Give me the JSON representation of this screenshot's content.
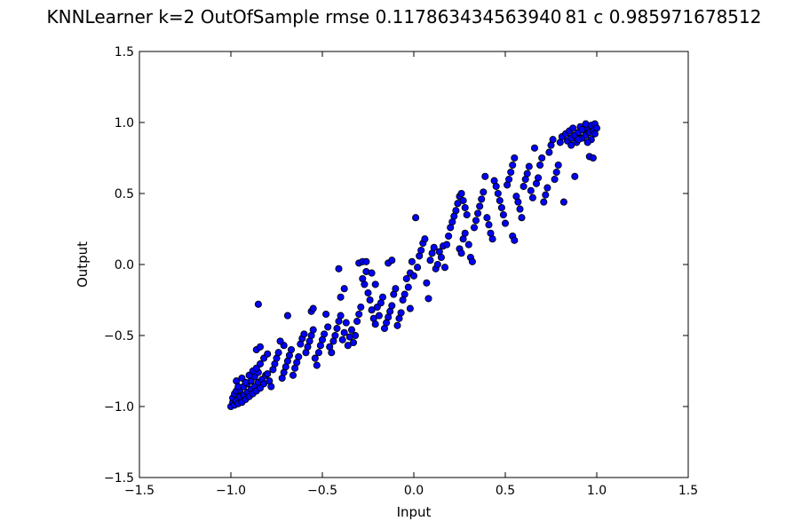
{
  "chart_data": {
    "type": "scatter",
    "title": "KNNLearner k=2 OutOfSample rmse 0.117863434563940 81 c 0.985971678512",
    "xlabel": "Input",
    "ylabel": "Output",
    "xlim": [
      -1.5,
      1.5
    ],
    "ylim": [
      -1.5,
      1.5
    ],
    "xticks": [
      -1.5,
      -1.0,
      -0.5,
      0.0,
      0.5,
      1.0,
      1.5
    ],
    "yticks": [
      -1.5,
      -1.0,
      -0.5,
      0.0,
      0.5,
      1.0,
      1.5
    ],
    "xtick_labels": [
      "−1.5",
      "−1.0",
      "−0.5",
      "0.0",
      "0.5",
      "1.0",
      "1.5"
    ],
    "ytick_labels": [
      "−1.5",
      "−1.0",
      "−0.5",
      "0.0",
      "0.5",
      "1.0",
      "1.5"
    ],
    "grid": false,
    "point_color": "#0000ff",
    "points": [
      [
        -1.0,
        -1.0
      ],
      [
        -0.99,
        -0.97
      ],
      [
        -0.98,
        -0.99
      ],
      [
        -0.99,
        -0.94
      ],
      [
        -0.97,
        -0.96
      ],
      [
        -0.98,
        -0.91
      ],
      [
        -0.96,
        -0.98
      ],
      [
        -0.95,
        -0.93
      ],
      [
        -0.97,
        -0.89
      ],
      [
        -0.94,
        -0.97
      ],
      [
        -0.93,
        -0.92
      ],
      [
        -0.95,
        -0.88
      ],
      [
        -0.92,
        -0.95
      ],
      [
        -0.91,
        -0.9
      ],
      [
        -0.93,
        -0.86
      ],
      [
        -0.9,
        -0.93
      ],
      [
        -0.89,
        -0.88
      ],
      [
        -0.91,
        -0.84
      ],
      [
        -0.88,
        -0.91
      ],
      [
        -0.87,
        -0.86
      ],
      [
        -0.89,
        -0.82
      ],
      [
        -0.86,
        -0.89
      ],
      [
        -0.85,
        -0.83
      ],
      [
        -0.87,
        -0.79
      ],
      [
        -0.84,
        -0.87
      ],
      [
        -0.83,
        -0.81
      ],
      [
        -0.85,
        -0.76
      ],
      [
        -0.82,
        -0.84
      ],
      [
        -0.81,
        -0.78
      ],
      [
        -0.97,
        -0.82
      ],
      [
        -0.96,
        -0.86
      ],
      [
        -0.94,
        -0.8
      ],
      [
        -0.92,
        -0.83
      ],
      [
        -0.9,
        -0.78
      ],
      [
        -0.88,
        -0.75
      ],
      [
        -0.86,
        -0.73
      ],
      [
        -0.84,
        -0.7
      ],
      [
        -0.86,
        -0.6
      ],
      [
        -0.84,
        -0.58
      ],
      [
        -0.82,
        -0.66
      ],
      [
        -0.8,
        -0.63
      ],
      [
        -0.8,
        -0.77
      ],
      [
        -0.79,
        -0.82
      ],
      [
        -0.78,
        -0.86
      ],
      [
        -0.77,
        -0.74
      ],
      [
        -0.76,
        -0.7
      ],
      [
        -0.75,
        -0.66
      ],
      [
        -0.74,
        -0.62
      ],
      [
        -0.72,
        -0.8
      ],
      [
        -0.71,
        -0.76
      ],
      [
        -0.7,
        -0.72
      ],
      [
        -0.69,
        -0.68
      ],
      [
        -0.68,
        -0.64
      ],
      [
        -0.67,
        -0.6
      ],
      [
        -0.71,
        -0.57
      ],
      [
        -0.73,
        -0.54
      ],
      [
        -0.85,
        -0.28
      ],
      [
        -0.69,
        -0.36
      ],
      [
        -0.66,
        -0.78
      ],
      [
        -0.65,
        -0.73
      ],
      [
        -0.64,
        -0.69
      ],
      [
        -0.63,
        -0.65
      ],
      [
        -0.62,
        -0.56
      ],
      [
        -0.61,
        -0.52
      ],
      [
        -0.6,
        -0.49
      ],
      [
        -0.59,
        -0.62
      ],
      [
        -0.58,
        -0.58
      ],
      [
        -0.57,
        -0.54
      ],
      [
        -0.56,
        -0.5
      ],
      [
        -0.55,
        -0.46
      ],
      [
        -0.54,
        -0.66
      ],
      [
        -0.53,
        -0.71
      ],
      [
        -0.52,
        -0.62
      ],
      [
        -0.51,
        -0.57
      ],
      [
        -0.5,
        -0.53
      ],
      [
        -0.49,
        -0.49
      ],
      [
        -0.48,
        -0.35
      ],
      [
        -0.47,
        -0.44
      ],
      [
        -0.56,
        -0.33
      ],
      [
        -0.55,
        -0.31
      ],
      [
        -0.46,
        -0.58
      ],
      [
        -0.45,
        -0.62
      ],
      [
        -0.44,
        -0.54
      ],
      [
        -0.43,
        -0.5
      ],
      [
        -0.42,
        -0.45
      ],
      [
        -0.41,
        -0.4
      ],
      [
        -0.4,
        -0.36
      ],
      [
        -0.39,
        -0.53
      ],
      [
        -0.38,
        -0.48
      ],
      [
        -0.37,
        -0.41
      ],
      [
        -0.36,
        -0.57
      ],
      [
        -0.35,
        -0.51
      ],
      [
        -0.34,
        -0.46
      ],
      [
        -0.4,
        -0.23
      ],
      [
        -0.38,
        -0.17
      ],
      [
        -0.41,
        -0.03
      ],
      [
        -0.33,
        -0.55
      ],
      [
        -0.32,
        -0.5
      ],
      [
        -0.31,
        -0.4
      ],
      [
        -0.3,
        -0.35
      ],
      [
        -0.29,
        -0.3
      ],
      [
        -0.28,
        -0.1
      ],
      [
        -0.27,
        -0.14
      ],
      [
        -0.26,
        -0.05
      ],
      [
        -0.25,
        -0.2
      ],
      [
        -0.24,
        -0.25
      ],
      [
        -0.23,
        -0.32
      ],
      [
        -0.22,
        -0.38
      ],
      [
        -0.21,
        -0.42
      ],
      [
        -0.2,
        -0.3
      ],
      [
        -0.19,
        -0.36
      ],
      [
        -0.3,
        0.01
      ],
      [
        -0.28,
        0.02
      ],
      [
        -0.26,
        0.02
      ],
      [
        -0.23,
        -0.06
      ],
      [
        -0.21,
        -0.14
      ],
      [
        -0.18,
        -0.27
      ],
      [
        -0.17,
        -0.23
      ],
      [
        -0.16,
        -0.45
      ],
      [
        -0.15,
        -0.41
      ],
      [
        -0.14,
        -0.37
      ],
      [
        -0.13,
        -0.33
      ],
      [
        -0.12,
        -0.29
      ],
      [
        -0.14,
        0.01
      ],
      [
        -0.12,
        0.03
      ],
      [
        -0.11,
        -0.21
      ],
      [
        -0.1,
        -0.17
      ],
      [
        -0.09,
        -0.43
      ],
      [
        -0.08,
        -0.38
      ],
      [
        -0.07,
        -0.34
      ],
      [
        -0.06,
        -0.25
      ],
      [
        -0.05,
        -0.21
      ],
      [
        -0.04,
        -0.1
      ],
      [
        -0.03,
        -0.16
      ],
      [
        -0.02,
        -0.06
      ],
      [
        -0.01,
        0.02
      ],
      [
        0.01,
        0.33
      ],
      [
        -0.02,
        -0.31
      ],
      [
        0.0,
        -0.08
      ],
      [
        0.02,
        -0.02
      ],
      [
        0.03,
        0.06
      ],
      [
        0.04,
        0.1
      ],
      [
        0.05,
        0.15
      ],
      [
        0.06,
        0.18
      ],
      [
        0.07,
        -0.13
      ],
      [
        0.08,
        -0.24
      ],
      [
        0.09,
        0.03
      ],
      [
        0.1,
        0.08
      ],
      [
        0.11,
        0.12
      ],
      [
        0.12,
        -0.03
      ],
      [
        0.13,
        0.0
      ],
      [
        0.14,
        0.09
      ],
      [
        0.15,
        0.05
      ],
      [
        0.16,
        0.13
      ],
      [
        0.17,
        -0.02
      ],
      [
        0.18,
        0.14
      ],
      [
        0.19,
        0.2
      ],
      [
        0.2,
        0.26
      ],
      [
        0.21,
        0.3
      ],
      [
        0.22,
        0.34
      ],
      [
        0.23,
        0.38
      ],
      [
        0.24,
        0.43
      ],
      [
        0.25,
        0.48
      ],
      [
        0.26,
        0.5
      ],
      [
        0.27,
        0.45
      ],
      [
        0.28,
        0.4
      ],
      [
        0.29,
        0.35
      ],
      [
        0.25,
        0.11
      ],
      [
        0.26,
        0.08
      ],
      [
        0.27,
        0.18
      ],
      [
        0.28,
        0.22
      ],
      [
        0.3,
        0.14
      ],
      [
        0.31,
        0.05
      ],
      [
        0.32,
        0.02
      ],
      [
        0.33,
        0.26
      ],
      [
        0.34,
        0.31
      ],
      [
        0.35,
        0.36
      ],
      [
        0.36,
        0.41
      ],
      [
        0.37,
        0.46
      ],
      [
        0.38,
        0.51
      ],
      [
        0.39,
        0.62
      ],
      [
        0.4,
        0.33
      ],
      [
        0.41,
        0.28
      ],
      [
        0.42,
        0.22
      ],
      [
        0.43,
        0.18
      ],
      [
        0.44,
        0.59
      ],
      [
        0.45,
        0.55
      ],
      [
        0.46,
        0.5
      ],
      [
        0.47,
        0.45
      ],
      [
        0.48,
        0.4
      ],
      [
        0.49,
        0.35
      ],
      [
        0.5,
        0.29
      ],
      [
        0.51,
        0.56
      ],
      [
        0.52,
        0.6
      ],
      [
        0.53,
        0.65
      ],
      [
        0.54,
        0.7
      ],
      [
        0.55,
        0.75
      ],
      [
        0.56,
        0.48
      ],
      [
        0.57,
        0.44
      ],
      [
        0.58,
        0.39
      ],
      [
        0.54,
        0.2
      ],
      [
        0.55,
        0.17
      ],
      [
        0.59,
        0.33
      ],
      [
        0.6,
        0.55
      ],
      [
        0.61,
        0.6
      ],
      [
        0.62,
        0.64
      ],
      [
        0.63,
        0.69
      ],
      [
        0.64,
        0.52
      ],
      [
        0.65,
        0.47
      ],
      [
        0.66,
        0.82
      ],
      [
        0.67,
        0.57
      ],
      [
        0.68,
        0.61
      ],
      [
        0.69,
        0.7
      ],
      [
        0.7,
        0.75
      ],
      [
        0.71,
        0.44
      ],
      [
        0.72,
        0.49
      ],
      [
        0.73,
        0.54
      ],
      [
        0.74,
        0.79
      ],
      [
        0.75,
        0.84
      ],
      [
        0.76,
        0.88
      ],
      [
        0.77,
        0.6
      ],
      [
        0.78,
        0.65
      ],
      [
        0.79,
        0.7
      ],
      [
        0.8,
        0.86
      ],
      [
        0.81,
        0.9
      ],
      [
        0.82,
        0.44
      ],
      [
        0.83,
        0.92
      ],
      [
        0.84,
        0.87
      ],
      [
        0.85,
        0.94
      ],
      [
        0.86,
        0.89
      ],
      [
        0.87,
        0.96
      ],
      [
        0.88,
        0.91
      ],
      [
        0.89,
        0.86
      ],
      [
        0.9,
        0.93
      ],
      [
        0.91,
        0.97
      ],
      [
        0.92,
        0.89
      ],
      [
        0.93,
        0.95
      ],
      [
        0.94,
        0.91
      ],
      [
        0.95,
        0.97
      ],
      [
        0.96,
        0.93
      ],
      [
        0.97,
        0.98
      ],
      [
        0.98,
        0.94
      ],
      [
        0.99,
        0.99
      ],
      [
        1.0,
        0.96
      ],
      [
        0.99,
        0.92
      ],
      [
        0.97,
        0.88
      ],
      [
        0.96,
        0.76
      ],
      [
        0.98,
        0.75
      ],
      [
        0.88,
        0.62
      ],
      [
        0.86,
        0.84
      ],
      [
        0.94,
        0.99
      ],
      [
        0.92,
        0.95
      ],
      [
        0.9,
        0.88
      ],
      [
        0.95,
        0.86
      ]
    ]
  }
}
